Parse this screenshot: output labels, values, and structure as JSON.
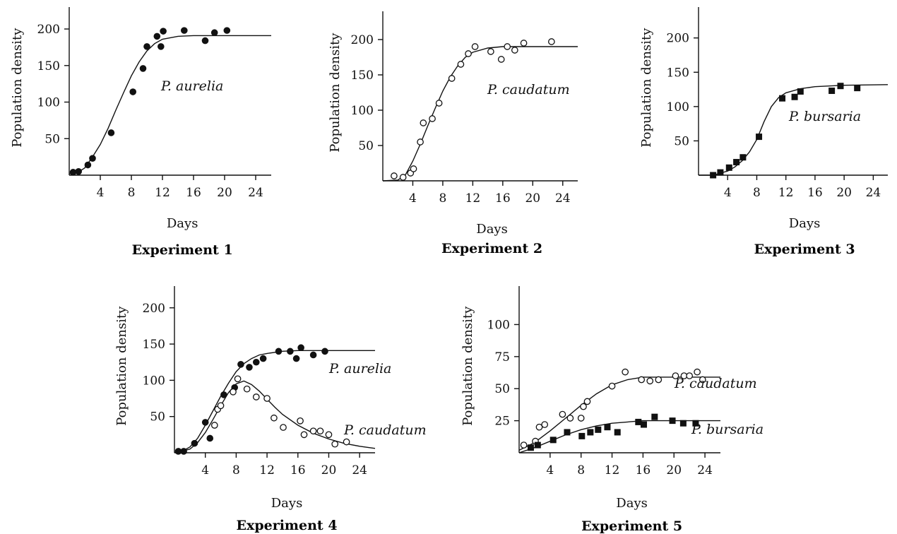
{
  "chart_data": [
    {
      "id": "exp1",
      "type": "scatter",
      "title": "Experiment 1",
      "xlabel": "Days",
      "ylabel": "Population density",
      "xticks": [
        4,
        8,
        12,
        16,
        20,
        24
      ],
      "yticks": [
        50,
        100,
        150,
        200
      ],
      "xlim": [
        0,
        26
      ],
      "ylim": [
        0,
        230
      ],
      "series": [
        {
          "name": "P. aurelia",
          "marker": "filled-circle",
          "points": [
            [
              0.5,
              4
            ],
            [
              1.2,
              5
            ],
            [
              2.4,
              14
            ],
            [
              3,
              23
            ],
            [
              5.4,
              58
            ],
            [
              8.2,
              114
            ],
            [
              9.5,
              146
            ],
            [
              10,
              176
            ],
            [
              11.3,
              190
            ],
            [
              11.8,
              176
            ],
            [
              12.1,
              197
            ],
            [
              14.8,
              198
            ],
            [
              17.5,
              184
            ],
            [
              18.7,
              195
            ],
            [
              20.3,
              198
            ]
          ],
          "curve": [
            [
              0,
              2
            ],
            [
              1,
              3
            ],
            [
              2,
              10
            ],
            [
              3,
              25
            ],
            [
              4,
              42
            ],
            [
              5,
              64
            ],
            [
              6,
              89
            ],
            [
              7,
              113
            ],
            [
              8,
              136
            ],
            [
              9,
              155
            ],
            [
              10,
              170
            ],
            [
              11,
              180
            ],
            [
              12,
              186
            ],
            [
              14,
              190
            ],
            [
              16,
              191
            ],
            [
              20,
              191
            ],
            [
              26,
              191
            ]
          ]
        }
      ]
    },
    {
      "id": "exp2",
      "type": "scatter",
      "title": "Experiment 2",
      "xlabel": "Days",
      "ylabel": "Population density",
      "xticks": [
        4,
        8,
        12,
        16,
        20,
        24
      ],
      "yticks": [
        50,
        100,
        150,
        200
      ],
      "xlim": [
        0,
        26
      ],
      "ylim": [
        0,
        240
      ],
      "series": [
        {
          "name": "P. caudatum",
          "marker": "open-circle",
          "points": [
            [
              1.5,
              7
            ],
            [
              2.7,
              5
            ],
            [
              3.7,
              11
            ],
            [
              4.1,
              17
            ],
            [
              5,
              55
            ],
            [
              5.4,
              82
            ],
            [
              6.6,
              88
            ],
            [
              7.5,
              110
            ],
            [
              9.2,
              145
            ],
            [
              10.4,
              165
            ],
            [
              11.4,
              180
            ],
            [
              12.3,
              190
            ],
            [
              14.4,
              183
            ],
            [
              15.8,
              172
            ],
            [
              16.6,
              190
            ],
            [
              17.6,
              185
            ],
            [
              18.8,
              195
            ],
            [
              22.5,
              197
            ]
          ],
          "curve": [
            [
              0,
              0
            ],
            [
              2,
              1
            ],
            [
              3,
              8
            ],
            [
              4,
              28
            ],
            [
              5,
              52
            ],
            [
              6,
              78
            ],
            [
              7,
              103
            ],
            [
              8,
              127
            ],
            [
              9,
              147
            ],
            [
              10,
              163
            ],
            [
              11,
              175
            ],
            [
              12,
              182
            ],
            [
              14,
              188
            ],
            [
              16,
              190
            ],
            [
              20,
              190
            ],
            [
              26,
              190
            ]
          ]
        }
      ]
    },
    {
      "id": "exp3",
      "type": "scatter",
      "title": "Experiment 3",
      "xlabel": "Days",
      "ylabel": "Population density",
      "xticks": [
        4,
        8,
        12,
        16,
        20,
        24
      ],
      "yticks": [
        50,
        100,
        150,
        200
      ],
      "xlim": [
        0,
        26
      ],
      "ylim": [
        0,
        245
      ],
      "series": [
        {
          "name": "P. bursaria",
          "marker": "filled-square",
          "points": [
            [
              2,
              0
            ],
            [
              3,
              4
            ],
            [
              4.2,
              11
            ],
            [
              5.2,
              19
            ],
            [
              6.1,
              26
            ],
            [
              8.3,
              56
            ],
            [
              11.5,
              112
            ],
            [
              13.2,
              114
            ],
            [
              14,
              122
            ],
            [
              18.3,
              123
            ],
            [
              19.5,
              130
            ],
            [
              21.8,
              127
            ]
          ],
          "curve": [
            [
              0,
              0
            ],
            [
              2,
              0
            ],
            [
              4,
              6
            ],
            [
              5,
              12
            ],
            [
              6,
              21
            ],
            [
              7,
              34
            ],
            [
              8,
              52
            ],
            [
              9,
              78
            ],
            [
              10,
              100
            ],
            [
              11,
              113
            ],
            [
              12,
              120
            ],
            [
              14,
              126
            ],
            [
              16,
              129
            ],
            [
              20,
              131
            ],
            [
              26,
              132
            ]
          ]
        }
      ]
    },
    {
      "id": "exp4",
      "type": "scatter",
      "title": "Experiment 4",
      "xlabel": "Days",
      "ylabel": "Population density",
      "xticks": [
        4,
        8,
        12,
        16,
        20,
        24
      ],
      "yticks": [
        50,
        100,
        150,
        200
      ],
      "xlim": [
        0,
        26
      ],
      "ylim": [
        0,
        230
      ],
      "series": [
        {
          "name": "P. aurelia",
          "marker": "filled-circle",
          "points": [
            [
              0.5,
              2
            ],
            [
              1.2,
              2
            ],
            [
              2.6,
              13
            ],
            [
              4,
              42
            ],
            [
              4.6,
              20
            ],
            [
              6.4,
              80
            ],
            [
              7.8,
              90
            ],
            [
              8.6,
              122
            ],
            [
              9.7,
              118
            ],
            [
              10.6,
              125
            ],
            [
              11.5,
              130
            ],
            [
              13.5,
              140
            ],
            [
              15,
              140
            ],
            [
              15.8,
              130
            ],
            [
              16.4,
              145
            ],
            [
              18,
              135
            ],
            [
              19.5,
              140
            ]
          ],
          "curve": [
            [
              0,
              0
            ],
            [
              1,
              2
            ],
            [
              2,
              8
            ],
            [
              3,
              20
            ],
            [
              4,
              38
            ],
            [
              5,
              58
            ],
            [
              6,
              78
            ],
            [
              7,
              96
            ],
            [
              8,
              112
            ],
            [
              9,
              123
            ],
            [
              10,
              130
            ],
            [
              11,
              135
            ],
            [
              12,
              137
            ],
            [
              14,
              140
            ],
            [
              16,
              141
            ],
            [
              26,
              141
            ]
          ]
        },
        {
          "name": "P. caudatum",
          "marker": "open-circle",
          "points": [
            [
              5.2,
              38
            ],
            [
              5.6,
              60
            ],
            [
              6,
              65
            ],
            [
              7.6,
              84
            ],
            [
              8.2,
              102
            ],
            [
              9.4,
              88
            ],
            [
              10.6,
              77
            ],
            [
              12,
              75
            ],
            [
              12.9,
              48
            ],
            [
              14.1,
              35
            ],
            [
              16.3,
              44
            ],
            [
              16.8,
              25
            ],
            [
              18,
              30
            ],
            [
              18.9,
              30
            ],
            [
              20,
              25
            ],
            [
              20.8,
              12
            ],
            [
              22.3,
              15
            ]
          ],
          "curve": [
            [
              0,
              0
            ],
            [
              2,
              5
            ],
            [
              3,
              14
            ],
            [
              4,
              28
            ],
            [
              5,
              46
            ],
            [
              6,
              65
            ],
            [
              7,
              83
            ],
            [
              8,
              95
            ],
            [
              9,
              99
            ],
            [
              10,
              94
            ],
            [
              11,
              85
            ],
            [
              12,
              74
            ],
            [
              13,
              63
            ],
            [
              14,
              53
            ],
            [
              16,
              38
            ],
            [
              18,
              27
            ],
            [
              20,
              19
            ],
            [
              22,
              13
            ],
            [
              24,
              9
            ],
            [
              26,
              6
            ]
          ]
        }
      ]
    },
    {
      "id": "exp5",
      "type": "scatter",
      "title": "Experiment 5",
      "xlabel": "Days",
      "ylabel": "Population density",
      "xticks": [
        4,
        8,
        12,
        16,
        20,
        24
      ],
      "yticks": [
        25,
        50,
        75,
        100
      ],
      "xlim": [
        0,
        26
      ],
      "ylim": [
        0,
        130
      ],
      "series": [
        {
          "name": "P. caudatum",
          "marker": "open-circle",
          "points": [
            [
              0.6,
              6
            ],
            [
              2.1,
              9
            ],
            [
              2.6,
              20
            ],
            [
              3.3,
              22
            ],
            [
              5.6,
              30
            ],
            [
              6.6,
              27
            ],
            [
              8,
              27
            ],
            [
              8.3,
              36
            ],
            [
              8.8,
              40
            ],
            [
              12,
              52
            ],
            [
              13.7,
              63
            ],
            [
              15.8,
              57
            ],
            [
              16.9,
              56
            ],
            [
              18,
              57
            ],
            [
              20.2,
              60
            ],
            [
              21.3,
              60
            ],
            [
              22,
              60
            ],
            [
              23,
              63
            ],
            [
              23.7,
              57
            ]
          ],
          "curve": [
            [
              0,
              2
            ],
            [
              2,
              8
            ],
            [
              4,
              17
            ],
            [
              6,
              27
            ],
            [
              8,
              37
            ],
            [
              10,
              46
            ],
            [
              12,
              53
            ],
            [
              14,
              57
            ],
            [
              16,
              59
            ],
            [
              20,
              59
            ],
            [
              26,
              59
            ]
          ]
        },
        {
          "name": "P. bursaria",
          "marker": "filled-square",
          "points": [
            [
              1.5,
              4
            ],
            [
              2.4,
              6
            ],
            [
              4.4,
              10
            ],
            [
              6.2,
              16
            ],
            [
              8.1,
              13
            ],
            [
              9.2,
              16
            ],
            [
              10.2,
              18
            ],
            [
              11.4,
              20
            ],
            [
              12.7,
              16
            ],
            [
              15.4,
              24
            ],
            [
              16.1,
              22
            ],
            [
              17.5,
              28
            ],
            [
              19.8,
              25
            ],
            [
              21.2,
              23
            ],
            [
              22.8,
              23
            ]
          ],
          "curve": [
            [
              0,
              0
            ],
            [
              2,
              4
            ],
            [
              4,
              9
            ],
            [
              6,
              14
            ],
            [
              8,
              18
            ],
            [
              10,
              21
            ],
            [
              12,
              23
            ],
            [
              14,
              24
            ],
            [
              16,
              25
            ],
            [
              20,
              25
            ],
            [
              26,
              25
            ]
          ]
        }
      ]
    }
  ]
}
